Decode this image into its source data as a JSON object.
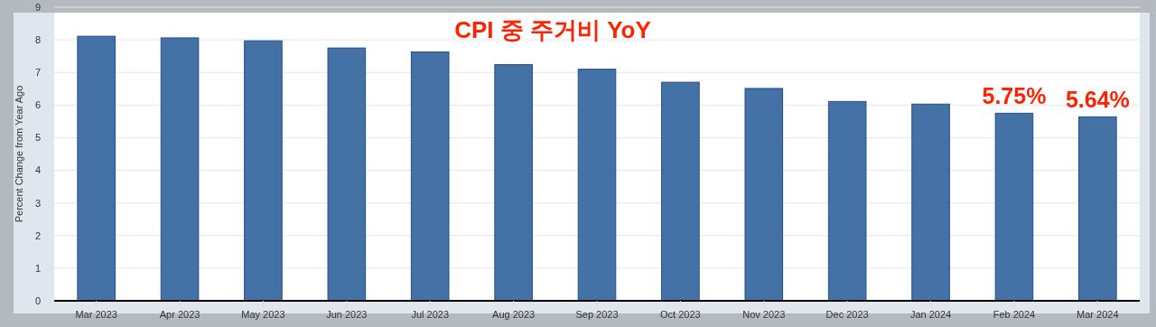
{
  "chart_data": {
    "type": "bar",
    "title": "CPI 중 주거비 YoY",
    "ylabel": "Percent Change from Year Ago",
    "categories": [
      "Mar 2023",
      "Apr 2023",
      "May 2023",
      "Jun 2023",
      "Jul 2023",
      "Aug 2023",
      "Sep 2023",
      "Oct 2023",
      "Nov 2023",
      "Dec 2023",
      "Jan 2024",
      "Feb 2024",
      "Mar 2024"
    ],
    "values": [
      8.11,
      8.06,
      7.97,
      7.75,
      7.63,
      7.24,
      7.1,
      6.7,
      6.51,
      6.11,
      6.03,
      5.75,
      5.64
    ],
    "value_labels": [
      null,
      null,
      null,
      null,
      null,
      null,
      null,
      null,
      null,
      null,
      null,
      "5.75%",
      "5.64%"
    ],
    "color": "#4471a6",
    "ylim": [
      0,
      9
    ],
    "yticks": [
      0,
      1,
      2,
      3,
      4,
      5,
      6,
      7,
      8,
      9
    ],
    "grid": "y"
  }
}
